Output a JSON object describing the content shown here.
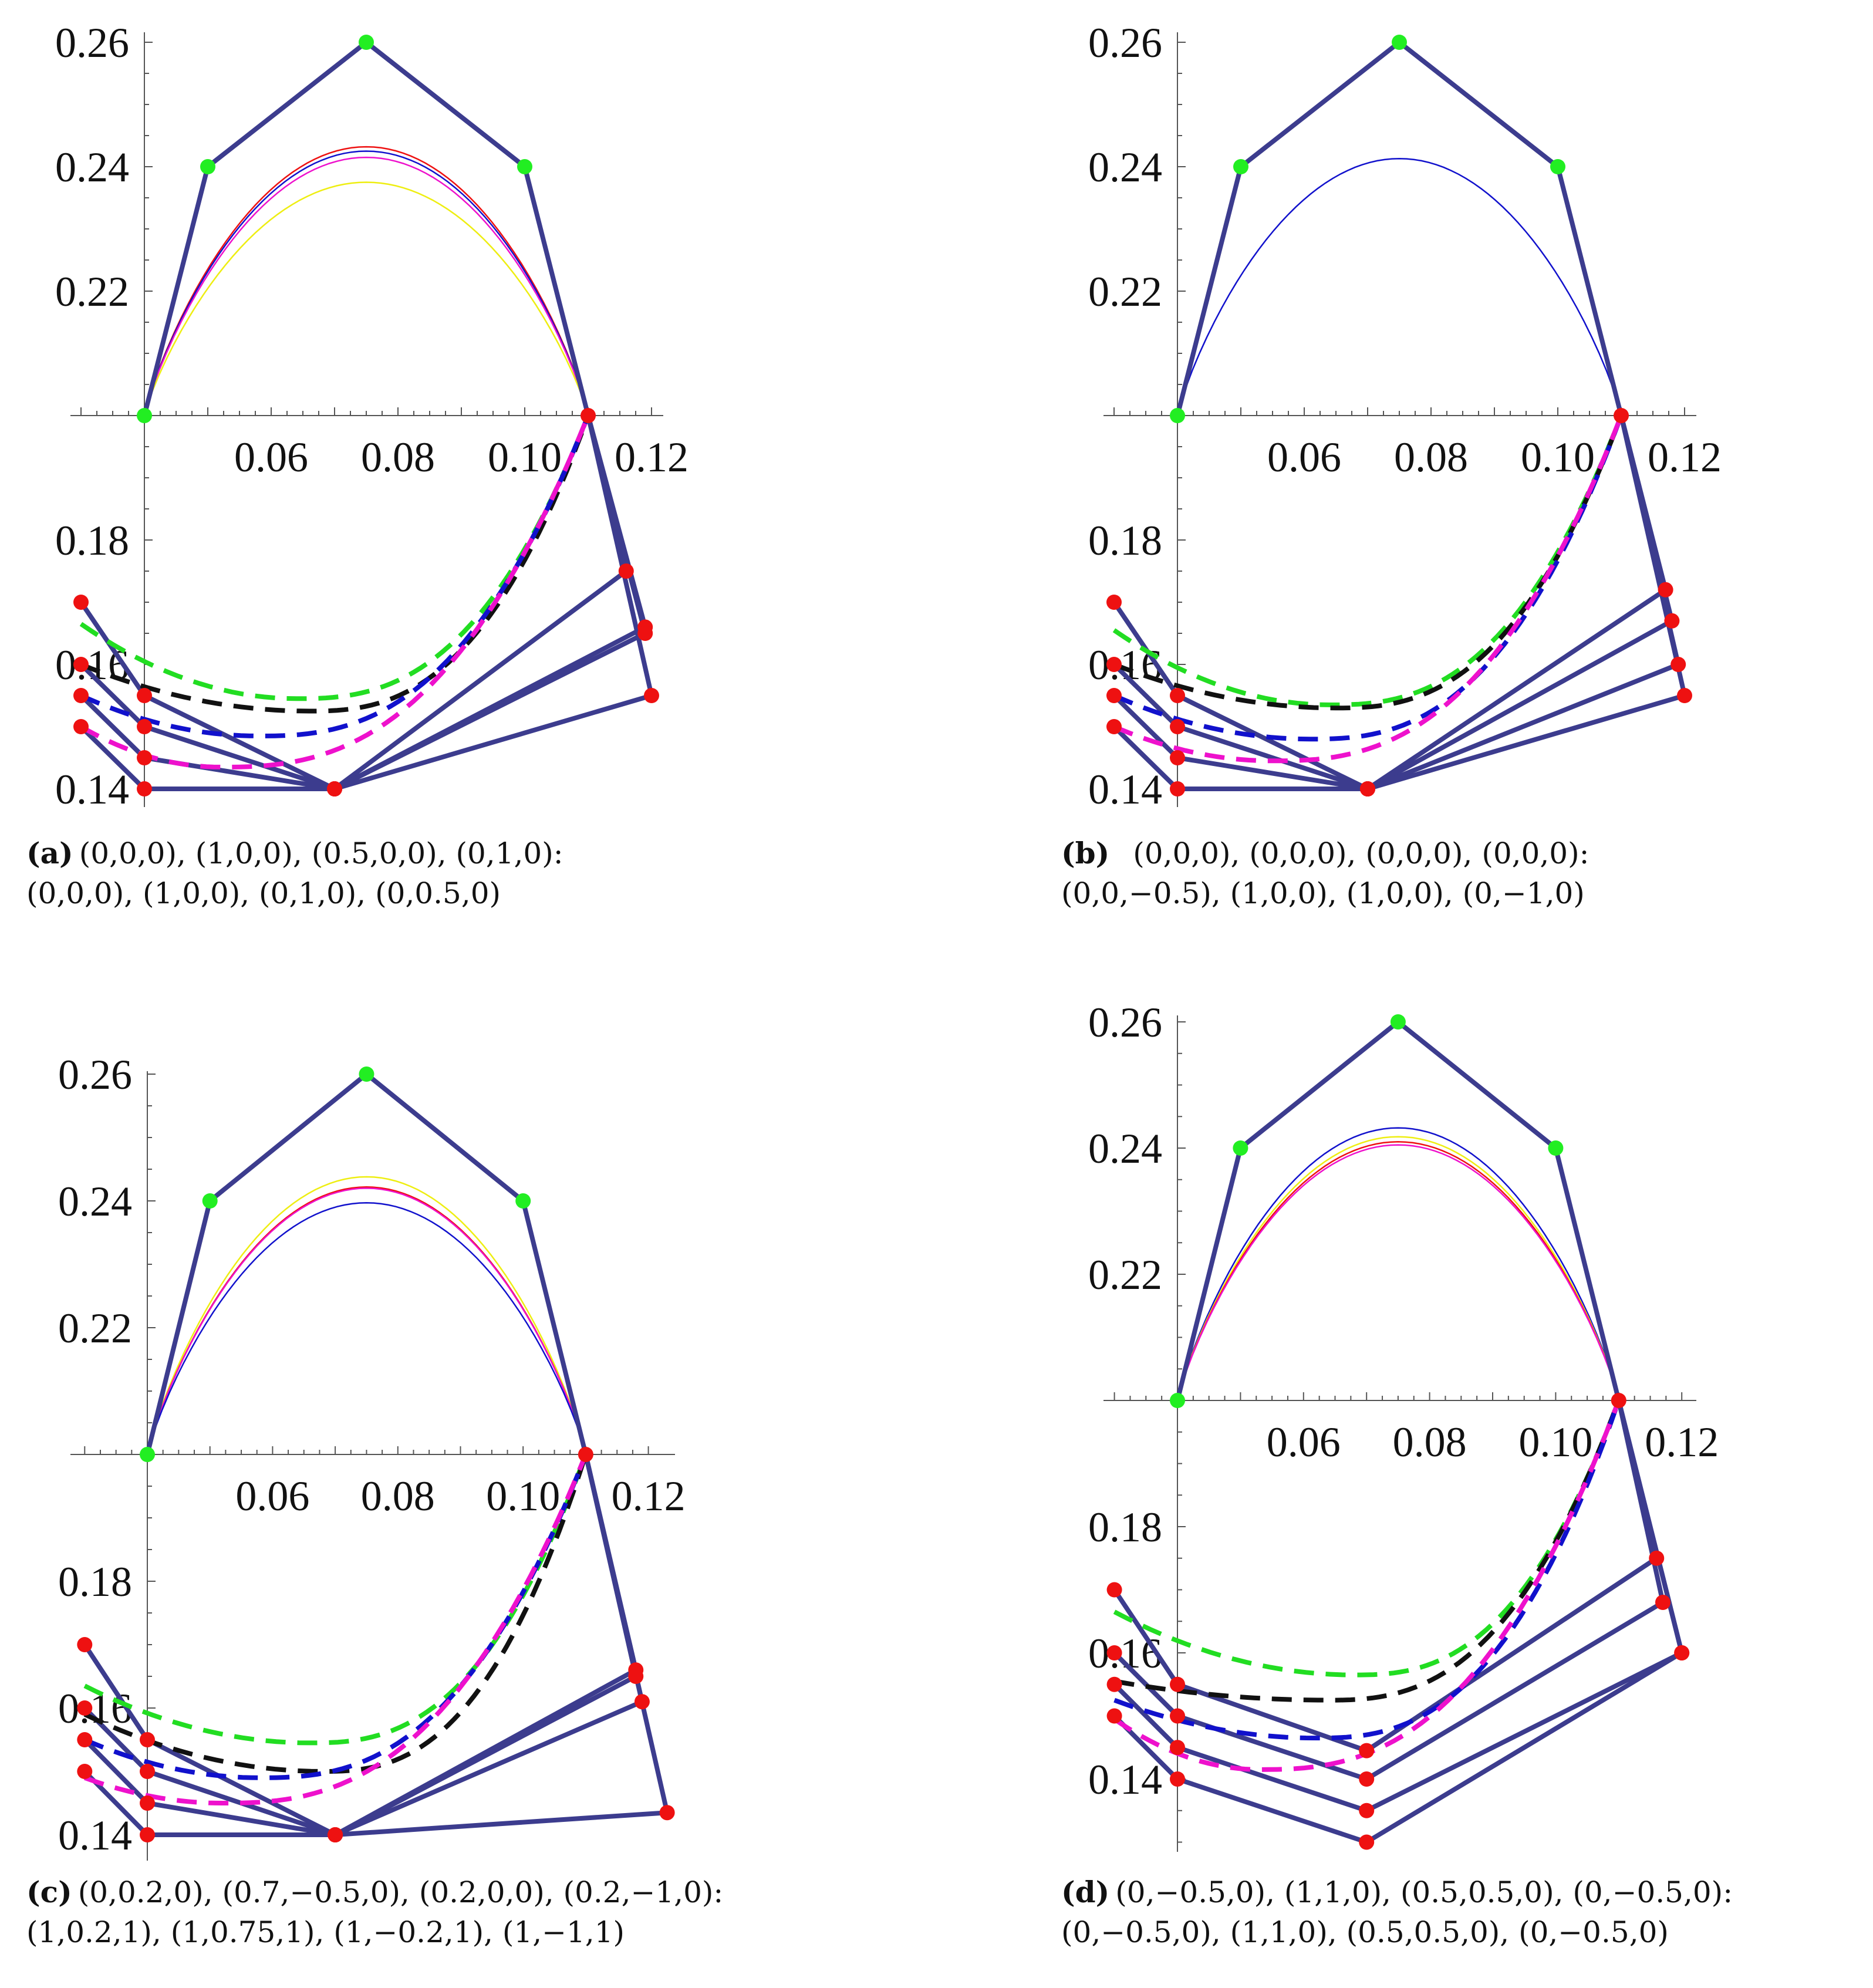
{
  "colors": {
    "polygon": "#3c3c8e",
    "green_pt": "#22ee22",
    "red_pt": "#ee1111",
    "red": "#ee1111",
    "blue": "#1111cc",
    "magenta": "#ee11cc",
    "yellow": "#eeee11",
    "black": "#111111",
    "green": "#22dd22"
  },
  "chart_data": [
    {
      "panel": "a",
      "type": "line",
      "caption_label": "(a)",
      "caption_line1": "(0,0,0), (1,0,0), (0.5,0,0), (0,1,0):",
      "caption_line2": "(0,0,0), (1,0,0), (0,1,0), (0,0.5,0)",
      "x_ticks": [
        "0.06",
        "0.08",
        "0.10",
        "0.12"
      ],
      "y_ticks_upper": [
        "0.26",
        "0.24",
        "0.22"
      ],
      "y_ticks_lower": [
        "0.18",
        "0.16",
        "0.14"
      ],
      "upper_polygon": [
        [
          0.04,
          0.2
        ],
        [
          0.05,
          0.24
        ],
        [
          0.075,
          0.26
        ],
        [
          0.1,
          0.24
        ],
        [
          0.11,
          0.2
        ]
      ],
      "upper_curves": [
        {
          "name": "red",
          "peak": 0.2432
        },
        {
          "name": "blue",
          "peak": 0.2425
        },
        {
          "name": "magenta",
          "peak": 0.2415
        },
        {
          "name": "yellow",
          "peak": 0.2375
        }
      ],
      "lower_fans": [
        {
          "left": [
            0.03,
            0.17
          ],
          "mid_left": [
            0.04,
            0.155
          ],
          "bottom": [
            0.07,
            0.14
          ],
          "right": [
            0.116,
            0.175
          ]
        },
        {
          "left": [
            0.03,
            0.16
          ],
          "mid_left": [
            0.04,
            0.15
          ],
          "bottom": [
            0.07,
            0.14
          ],
          "right": [
            0.119,
            0.166
          ]
        },
        {
          "left": [
            0.03,
            0.155
          ],
          "mid_left": [
            0.04,
            0.145
          ],
          "bottom": [
            0.07,
            0.14
          ],
          "right": [
            0.119,
            0.165
          ]
        },
        {
          "left": [
            0.03,
            0.15
          ],
          "mid_left": [
            0.04,
            0.14
          ],
          "bottom": [
            0.07,
            0.14
          ],
          "right": [
            0.12,
            0.155
          ]
        }
      ],
      "lower_curves": [
        {
          "name": "green",
          "start": [
            0.03,
            0.1665
          ],
          "min": [
            0.064,
            0.1545
          ]
        },
        {
          "name": "black",
          "start": [
            0.03,
            0.16
          ],
          "min": [
            0.066,
            0.1525
          ]
        },
        {
          "name": "blue",
          "start": [
            0.03,
            0.155
          ],
          "min": [
            0.058,
            0.1485
          ]
        },
        {
          "name": "magenta",
          "start": [
            0.03,
            0.15
          ],
          "min": [
            0.052,
            0.1435
          ]
        }
      ]
    },
    {
      "panel": "b",
      "type": "line",
      "caption_label": "(b)",
      "caption_line1": "(0,0,0), (0,0,0), (0,0,0), (0,0,0):",
      "caption_line2": "(0,0,−0.5), (1,0,0), (1,0,0), (0,−1,0)",
      "x_ticks": [
        "0.06",
        "0.08",
        "0.10",
        "0.12"
      ],
      "y_ticks_upper": [
        "0.26",
        "0.24",
        "0.22"
      ],
      "y_ticks_lower": [
        "0.18",
        "0.16",
        "0.14"
      ],
      "upper_polygon": [
        [
          0.04,
          0.2
        ],
        [
          0.05,
          0.24
        ],
        [
          0.075,
          0.26
        ],
        [
          0.1,
          0.24
        ],
        [
          0.11,
          0.2
        ]
      ],
      "upper_curves": [
        {
          "name": "blue",
          "peak": 0.2413
        }
      ],
      "lower_fans": [
        {
          "left": [
            0.03,
            0.17
          ],
          "mid_left": [
            0.04,
            0.155
          ],
          "bottom": [
            0.07,
            0.14
          ],
          "right": [
            0.117,
            0.172
          ]
        },
        {
          "left": [
            0.03,
            0.16
          ],
          "mid_left": [
            0.04,
            0.15
          ],
          "bottom": [
            0.07,
            0.14
          ],
          "right": [
            0.118,
            0.167
          ]
        },
        {
          "left": [
            0.03,
            0.155
          ],
          "mid_left": [
            0.04,
            0.145
          ],
          "bottom": [
            0.07,
            0.14
          ],
          "right": [
            0.119,
            0.16
          ]
        },
        {
          "left": [
            0.03,
            0.15
          ],
          "mid_left": [
            0.04,
            0.14
          ],
          "bottom": [
            0.07,
            0.14
          ],
          "right": [
            0.12,
            0.155
          ]
        }
      ],
      "lower_curves": [
        {
          "name": "green",
          "start": [
            0.03,
            0.1655
          ],
          "min": [
            0.064,
            0.1535
          ]
        },
        {
          "name": "black",
          "start": [
            0.03,
            0.16
          ],
          "min": [
            0.065,
            0.153
          ]
        },
        {
          "name": "blue",
          "start": [
            0.03,
            0.155
          ],
          "min": [
            0.061,
            0.148
          ]
        },
        {
          "name": "magenta",
          "start": [
            0.03,
            0.15
          ],
          "min": [
            0.055,
            0.1445
          ]
        }
      ]
    },
    {
      "panel": "c",
      "type": "line",
      "caption_label": "(c)",
      "caption_line1": "(0,0.2,0), (0.7,−0.5,0), (0.2,0,0), (0.2,−1,0):",
      "caption_line2": "(1,0.2,1), (1,0.75,1), (1,−0.2,1), (1,−1,1)",
      "x_ticks": [
        "0.06",
        "0.08",
        "0.10",
        "0.12"
      ],
      "y_ticks_upper": [
        "0.26",
        "0.24",
        "0.22"
      ],
      "y_ticks_lower": [
        "0.18",
        "0.16",
        "0.14"
      ],
      "upper_polygon": [
        [
          0.04,
          0.2
        ],
        [
          0.05,
          0.24
        ],
        [
          0.075,
          0.26
        ],
        [
          0.1,
          0.24
        ],
        [
          0.11,
          0.2
        ]
      ],
      "upper_curves": [
        {
          "name": "yellow",
          "peak": 0.2438
        },
        {
          "name": "red",
          "peak": 0.2422
        },
        {
          "name": "magenta",
          "peak": 0.242
        },
        {
          "name": "blue",
          "peak": 0.2397
        }
      ],
      "lower_fans": [
        {
          "left": [
            0.03,
            0.17
          ],
          "mid_left": [
            0.04,
            0.155
          ],
          "bottom": [
            0.07,
            0.14
          ],
          "right": [
            0.118,
            0.166
          ]
        },
        {
          "left": [
            0.03,
            0.16
          ],
          "mid_left": [
            0.04,
            0.15
          ],
          "bottom": [
            0.07,
            0.14
          ],
          "right": [
            0.118,
            0.165
          ]
        },
        {
          "left": [
            0.03,
            0.155
          ],
          "mid_left": [
            0.04,
            0.145
          ],
          "bottom": [
            0.07,
            0.14
          ],
          "right": [
            0.119,
            0.161
          ]
        },
        {
          "left": [
            0.03,
            0.15
          ],
          "mid_left": [
            0.04,
            0.14
          ],
          "bottom": [
            0.07,
            0.14
          ],
          "right": [
            0.123,
            0.1435
          ]
        }
      ],
      "lower_curves": [
        {
          "name": "green",
          "start": [
            0.03,
            0.1635
          ],
          "min": [
            0.066,
            0.1545
          ]
        },
        {
          "name": "black",
          "start": [
            0.03,
            0.159
          ],
          "min": [
            0.068,
            0.15
          ]
        },
        {
          "name": "blue",
          "start": [
            0.03,
            0.155
          ],
          "min": [
            0.058,
            0.149
          ]
        },
        {
          "name": "magenta",
          "start": [
            0.03,
            0.149
          ],
          "min": [
            0.052,
            0.145
          ]
        }
      ]
    },
    {
      "panel": "d",
      "type": "line",
      "caption_label": "(d)",
      "caption_line1": "(0,−0.5,0), (1,1,0), (0.5,0.5,0), (0,−0.5,0):",
      "caption_line2": "(0,−0.5,0), (1,1,0), (0.5,0.5,0), (0,−0.5,0)",
      "x_ticks": [
        "0.06",
        "0.08",
        "0.10",
        "0.12"
      ],
      "y_ticks_upper": [
        "0.26",
        "0.24",
        "0.22"
      ],
      "y_ticks_lower": [
        "0.18",
        "0.16",
        "0.14"
      ],
      "upper_polygon": [
        [
          0.04,
          0.2
        ],
        [
          0.05,
          0.24
        ],
        [
          0.075,
          0.26
        ],
        [
          0.1,
          0.24
        ],
        [
          0.11,
          0.2
        ]
      ],
      "upper_curves": [
        {
          "name": "blue",
          "peak": 0.2432
        },
        {
          "name": "yellow",
          "peak": 0.2418
        },
        {
          "name": "red",
          "peak": 0.241
        },
        {
          "name": "magenta",
          "peak": 0.2405
        }
      ],
      "lower_fans": [
        {
          "left": [
            0.03,
            0.17
          ],
          "mid_left": [
            0.04,
            0.155
          ],
          "bottom": [
            0.07,
            0.1445
          ],
          "right": [
            0.116,
            0.175
          ]
        },
        {
          "left": [
            0.03,
            0.16
          ],
          "mid_left": [
            0.04,
            0.15
          ],
          "bottom": [
            0.07,
            0.14
          ],
          "right": [
            0.117,
            0.168
          ]
        },
        {
          "left": [
            0.03,
            0.155
          ],
          "mid_left": [
            0.04,
            0.145
          ],
          "bottom": [
            0.07,
            0.135
          ],
          "right": [
            0.12,
            0.16
          ]
        },
        {
          "left": [
            0.03,
            0.15
          ],
          "mid_left": [
            0.04,
            0.14
          ],
          "bottom": [
            0.07,
            0.13
          ],
          "right": [
            0.12,
            0.16
          ]
        }
      ],
      "lower_curves": [
        {
          "name": "green",
          "start": [
            0.03,
            0.1665
          ],
          "min": [
            0.068,
            0.1565
          ]
        },
        {
          "name": "black",
          "start": [
            0.03,
            0.1555
          ],
          "min": [
            0.064,
            0.1525
          ]
        },
        {
          "name": "blue",
          "start": [
            0.03,
            0.1525
          ],
          "min": [
            0.062,
            0.1465
          ]
        },
        {
          "name": "magenta",
          "start": [
            0.03,
            0.1495
          ],
          "min": [
            0.053,
            0.1415
          ]
        }
      ]
    }
  ]
}
